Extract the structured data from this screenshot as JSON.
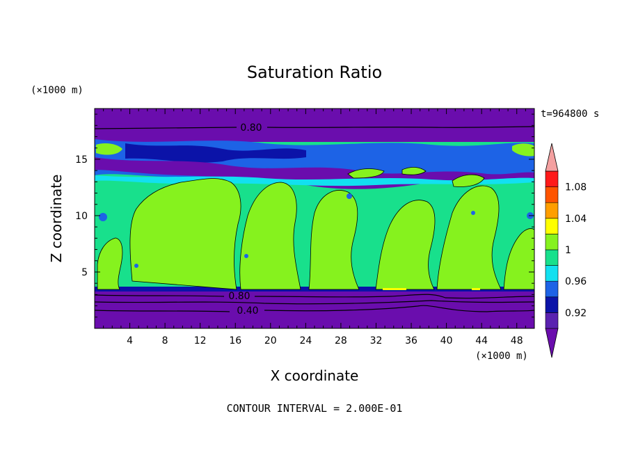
{
  "chart_data": {
    "type": "heatmap",
    "title": "Saturation Ratio",
    "xlabel": "X coordinate",
    "ylabel": "Z coordinate",
    "x_unit": "(×1000 m)",
    "z_unit": "(×1000 m)",
    "time_label": "t=964800 s",
    "footer": "CONTOUR INTERVAL = 2.000E-01",
    "xlim": [
      0,
      50
    ],
    "ylim": [
      0,
      19.5
    ],
    "x_ticks": [
      "4",
      "8",
      "12",
      "16",
      "20",
      "24",
      "28",
      "32",
      "36",
      "40",
      "44",
      "48"
    ],
    "y_ticks": [
      "5",
      "10",
      "15"
    ],
    "colorbar_labels": [
      "1.08",
      "1.04",
      "1",
      "0.96",
      "0.92"
    ],
    "colorbar_levels": [
      0.9,
      0.92,
      0.94,
      0.96,
      0.98,
      1.0,
      1.02,
      1.04,
      1.06,
      1.08,
      1.1
    ],
    "colorbar_colors": [
      "#6a0dad",
      "#5a22b0",
      "#0b13a8",
      "#1d63e6",
      "#12e0f0",
      "#18e08c",
      "#86f21e",
      "#ffff00",
      "#ff9e00",
      "#ff5400",
      "#ff1a1a",
      "#f4a0a0"
    ],
    "contour_labels": [
      {
        "text": "0.80",
        "x": 17.5,
        "z": 18.3
      },
      {
        "text": "0.80",
        "x": 17.0,
        "z": 2.9
      },
      {
        "text": "0.40",
        "x": 17.5,
        "z": 1.6
      }
    ],
    "bands": [
      {
        "z_bottom": 0,
        "z_top": 3.3,
        "value": "<0.92",
        "color": "#6a0dad"
      },
      {
        "z_bottom": 3.3,
        "z_top": 3.6,
        "value": "0.92-0.96",
        "color": "#0b13a8"
      },
      {
        "z_bottom": 3.6,
        "z_top": 13.5,
        "value": "0.98-1.02",
        "color": "#18e08c"
      },
      {
        "z_bottom": 13.5,
        "z_top": 17.5,
        "value": "0.92-0.98",
        "color": "#1d63e6"
      },
      {
        "z_bottom": 17.5,
        "z_top": 19.5,
        "value": "<0.92",
        "color": "#6a0dad"
      }
    ],
    "grid": false,
    "legend_position": "right"
  }
}
